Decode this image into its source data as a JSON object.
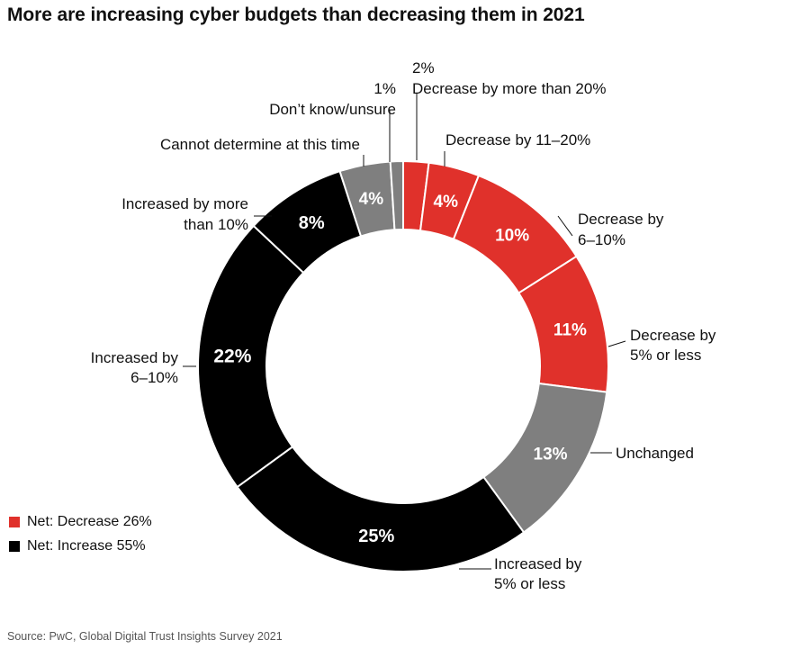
{
  "title": "More are increasing cyber budgets than decreasing them in 2021",
  "source": "Source: PwC, Global Digital Trust Insights Survey 2021",
  "legend": [
    {
      "label": "Net: Decrease 26%",
      "color": "#e0312b"
    },
    {
      "label": "Net: Increase 55%",
      "color": "#000000"
    }
  ],
  "chart_data": {
    "type": "pie",
    "donut": true,
    "unit": "%",
    "slices": [
      {
        "label_lines": [
          "Decrease by more than 20%"
        ],
        "value_label": "2%",
        "value": 2,
        "color": "#e0312b"
      },
      {
        "label_lines": [
          "Decrease by 11–20%"
        ],
        "value_label": "4%",
        "value": 4,
        "color": "#e0312b"
      },
      {
        "label_lines": [
          "Decrease by",
          "6–10%"
        ],
        "value_label": "10%",
        "value": 10,
        "color": "#e0312b"
      },
      {
        "label_lines": [
          "Decrease by",
          "5% or less"
        ],
        "value_label": "11%",
        "value": 11,
        "color": "#e0312b"
      },
      {
        "label_lines": [
          "Unchanged"
        ],
        "value_label": "13%",
        "value": 13,
        "color": "#7f7f7f"
      },
      {
        "label_lines": [
          "Increased by",
          "5% or less"
        ],
        "value_label": "25%",
        "value": 25,
        "color": "#000000"
      },
      {
        "label_lines": [
          "Increased by",
          "6–10%"
        ],
        "value_label": "22%",
        "value": 22,
        "color": "#000000"
      },
      {
        "label_lines": [
          "Increased by more",
          "than 10%"
        ],
        "value_label": "8%",
        "value": 8,
        "color": "#000000"
      },
      {
        "label_lines": [
          "Cannot determine at this time"
        ],
        "value_label": "4%",
        "value": 4,
        "color": "#7f7f7f"
      },
      {
        "label_lines": [
          "Don’t know/unsure"
        ],
        "value_label": "1%",
        "value": 1,
        "color": "#7f7f7f"
      }
    ]
  }
}
